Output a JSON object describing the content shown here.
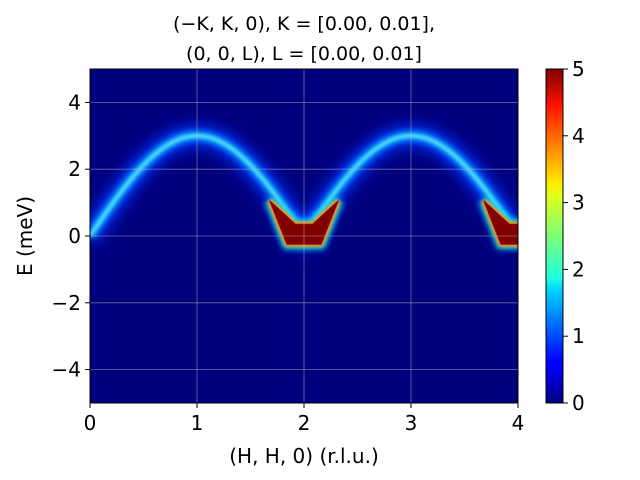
{
  "chart_data": {
    "type": "heatmap",
    "title_line1": "(−K, K, 0), K = [0.00, 0.01],",
    "title_line2": "(0, 0, L), L = [0.00, 0.01]",
    "xlabel": "(H, H, 0) (r.l.u.)",
    "ylabel": "E (meV)",
    "xlim": [
      0,
      4
    ],
    "ylim": [
      -5,
      5
    ],
    "xticks": [
      "0",
      "1",
      "2",
      "3",
      "4"
    ],
    "yticks": [
      "−4",
      "−2",
      "0",
      "2",
      "4"
    ],
    "grid": true,
    "colormap": "jet",
    "colorbar": {
      "min": 0,
      "max": 5,
      "ticks": [
        "0",
        "1",
        "2",
        "3",
        "4",
        "5"
      ]
    },
    "dispersion": {
      "description_values": [
        {
          "H": 0.0,
          "E": 0.0
        },
        {
          "H": 0.5,
          "E": 2.1
        },
        {
          "H": 1.0,
          "E": 3.0
        },
        {
          "H": 1.5,
          "E": 2.1
        },
        {
          "H": 2.0,
          "E": 0.0
        },
        {
          "H": 2.5,
          "E": 2.1
        },
        {
          "H": 3.0,
          "E": 3.0
        },
        {
          "H": 3.5,
          "E": 2.1
        },
        {
          "H": 4.0,
          "E": 0.0
        }
      ],
      "bandwidth_meV": 3.0,
      "saturated_regions_centers_H": [
        2.0,
        4.0
      ]
    }
  }
}
